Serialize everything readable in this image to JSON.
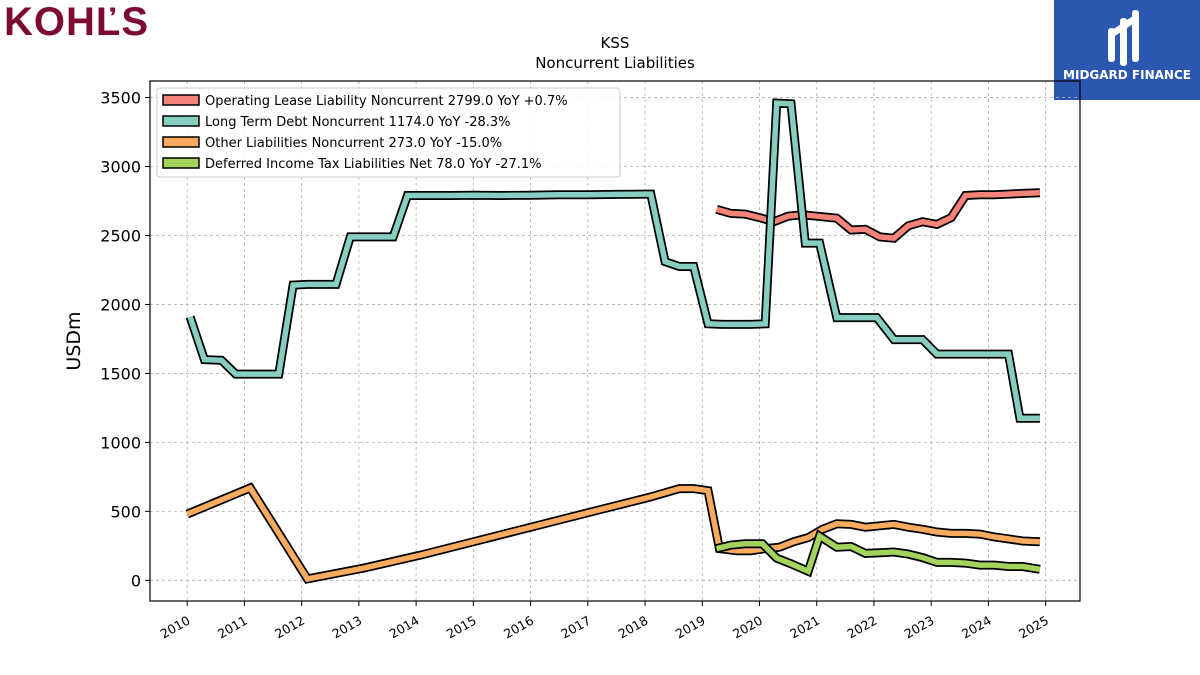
{
  "branding": {
    "left_logo_text": "KOHĽS",
    "left_logo_color": "#7c0a34",
    "right_logo_text": "MIDGARD FINANCE",
    "right_logo_bg": "#2b57b0"
  },
  "chart_data": {
    "type": "line",
    "title": "KSS",
    "subtitle": "Noncurrent  Liabilities",
    "xlabel": "",
    "ylabel": "USDm",
    "xlim": [
      2009.35,
      2025.6
    ],
    "ylim": [
      -150,
      3620
    ],
    "x_ticks": [
      2010,
      2011,
      2012,
      2013,
      2014,
      2015,
      2016,
      2017,
      2018,
      2019,
      2020,
      2021,
      2022,
      2023,
      2024,
      2025
    ],
    "y_ticks": [
      0,
      500,
      1000,
      1500,
      2000,
      2500,
      3000,
      3500
    ],
    "grid": true,
    "legend_position": "top-left",
    "series": [
      {
        "name": "Operating Lease Liability Noncurrent",
        "legend": "Operating Lease Liability Noncurrent  2799.0 YoY +0.7%",
        "color": "#f4837a",
        "points": [
          [
            2019.25,
            2690
          ],
          [
            2019.5,
            2660
          ],
          [
            2019.75,
            2655
          ],
          [
            2020.0,
            2630
          ],
          [
            2020.25,
            2600
          ],
          [
            2020.5,
            2640
          ],
          [
            2020.75,
            2650
          ],
          [
            2021.0,
            2640
          ],
          [
            2021.25,
            2630
          ],
          [
            2021.35,
            2625
          ],
          [
            2021.6,
            2540
          ],
          [
            2021.85,
            2545
          ],
          [
            2022.1,
            2490
          ],
          [
            2022.35,
            2480
          ],
          [
            2022.6,
            2570
          ],
          [
            2022.85,
            2600
          ],
          [
            2023.1,
            2580
          ],
          [
            2023.35,
            2630
          ],
          [
            2023.6,
            2790
          ],
          [
            2023.85,
            2795
          ],
          [
            2024.1,
            2795
          ],
          [
            2024.35,
            2800
          ],
          [
            2024.6,
            2805
          ],
          [
            2024.9,
            2810
          ]
        ]
      },
      {
        "name": "Long Term Debt Noncurrent",
        "legend": "Long Term Debt Noncurrent  1174.0 YoY -28.3%",
        "color": "#86cfc0",
        "points": [
          [
            2010.05,
            1910
          ],
          [
            2010.3,
            1600
          ],
          [
            2010.6,
            1595
          ],
          [
            2010.85,
            1495
          ],
          [
            2011.1,
            1495
          ],
          [
            2011.35,
            1495
          ],
          [
            2011.6,
            1495
          ],
          [
            2011.85,
            2140
          ],
          [
            2012.1,
            2145
          ],
          [
            2012.35,
            2145
          ],
          [
            2012.6,
            2145
          ],
          [
            2012.85,
            2490
          ],
          [
            2013.1,
            2490
          ],
          [
            2013.35,
            2490
          ],
          [
            2013.6,
            2490
          ],
          [
            2013.85,
            2790
          ],
          [
            2014.1,
            2790
          ],
          [
            2014.6,
            2790
          ],
          [
            2015.0,
            2792
          ],
          [
            2015.5,
            2790
          ],
          [
            2016.0,
            2792
          ],
          [
            2016.5,
            2795
          ],
          [
            2017.0,
            2795
          ],
          [
            2017.5,
            2798
          ],
          [
            2018.0,
            2800
          ],
          [
            2018.1,
            2800
          ],
          [
            2018.35,
            2310
          ],
          [
            2018.6,
            2275
          ],
          [
            2018.85,
            2275
          ],
          [
            2019.1,
            1860
          ],
          [
            2019.35,
            1855
          ],
          [
            2019.6,
            1855
          ],
          [
            2019.85,
            1855
          ],
          [
            2020.1,
            1860
          ],
          [
            2020.3,
            3460
          ],
          [
            2020.55,
            3455
          ],
          [
            2020.8,
            2445
          ],
          [
            2021.05,
            2445
          ],
          [
            2021.35,
            1905
          ],
          [
            2021.6,
            1905
          ],
          [
            2021.85,
            1905
          ],
          [
            2022.05,
            1905
          ],
          [
            2022.35,
            1745
          ],
          [
            2022.6,
            1745
          ],
          [
            2022.85,
            1745
          ],
          [
            2023.1,
            1640
          ],
          [
            2023.35,
            1640
          ],
          [
            2023.6,
            1640
          ],
          [
            2023.85,
            1640
          ],
          [
            2024.1,
            1640
          ],
          [
            2024.35,
            1640
          ],
          [
            2024.55,
            1175
          ],
          [
            2024.7,
            1175
          ],
          [
            2024.9,
            1175
          ]
        ]
      },
      {
        "name": "Other Liabilities Noncurrent",
        "legend": "Other Liabilities Noncurrent  273.0 YoY -15.0%",
        "color": "#f8ab5e",
        "points": [
          [
            2010.0,
            480
          ],
          [
            2011.1,
            670
          ],
          [
            2012.1,
            10
          ],
          [
            2013.1,
            90
          ],
          [
            2014.1,
            185
          ],
          [
            2015.1,
            290
          ],
          [
            2016.1,
            395
          ],
          [
            2017.1,
            500
          ],
          [
            2018.1,
            605
          ],
          [
            2018.6,
            665
          ],
          [
            2018.85,
            665
          ],
          [
            2019.1,
            650
          ],
          [
            2019.3,
            230
          ],
          [
            2019.6,
            215
          ],
          [
            2019.85,
            215
          ],
          [
            2020.1,
            230
          ],
          [
            2020.35,
            240
          ],
          [
            2020.6,
            280
          ],
          [
            2020.85,
            310
          ],
          [
            2021.1,
            370
          ],
          [
            2021.35,
            410
          ],
          [
            2021.6,
            405
          ],
          [
            2021.85,
            385
          ],
          [
            2022.1,
            395
          ],
          [
            2022.35,
            405
          ],
          [
            2022.6,
            385
          ],
          [
            2022.85,
            370
          ],
          [
            2023.1,
            350
          ],
          [
            2023.35,
            340
          ],
          [
            2023.6,
            340
          ],
          [
            2023.85,
            335
          ],
          [
            2024.1,
            315
          ],
          [
            2024.35,
            300
          ],
          [
            2024.6,
            285
          ],
          [
            2024.9,
            280
          ]
        ]
      },
      {
        "name": "Deferred Income Tax Liabilities Net",
        "legend": "Deferred Income Tax Liabilities Net  78.0 YoY -27.1%",
        "color": "#a3d35c",
        "points": [
          [
            2019.25,
            230
          ],
          [
            2019.5,
            255
          ],
          [
            2019.75,
            265
          ],
          [
            2020.05,
            265
          ],
          [
            2020.3,
            160
          ],
          [
            2020.55,
            120
          ],
          [
            2020.85,
            65
          ],
          [
            2021.05,
            320
          ],
          [
            2021.35,
            240
          ],
          [
            2021.6,
            245
          ],
          [
            2021.85,
            195
          ],
          [
            2022.1,
            200
          ],
          [
            2022.35,
            205
          ],
          [
            2022.6,
            190
          ],
          [
            2022.85,
            165
          ],
          [
            2023.1,
            130
          ],
          [
            2023.35,
            130
          ],
          [
            2023.6,
            125
          ],
          [
            2023.85,
            110
          ],
          [
            2024.1,
            110
          ],
          [
            2024.35,
            100
          ],
          [
            2024.6,
            100
          ],
          [
            2024.9,
            80
          ]
        ]
      }
    ]
  }
}
